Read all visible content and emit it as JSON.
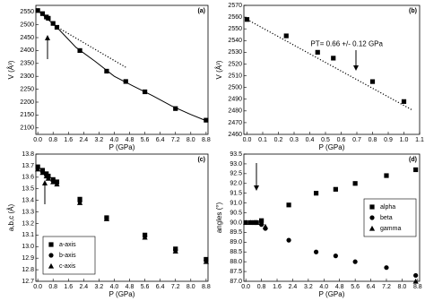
{
  "chart_data": [
    {
      "type": "scatter",
      "panel_label": "(a)",
      "xlabel": "P (GPa)",
      "ylabel": "V (Å³)",
      "xlim": [
        -0.1,
        8.9
      ],
      "ylim": [
        2075,
        2575
      ],
      "xticks": [
        {
          "value": 0,
          "label": "0.0"
        },
        0.8,
        1.6,
        2.4,
        3.2,
        {
          "value": 4,
          "label": "4.0"
        },
        4.8,
        5.6,
        6.4,
        7.2,
        {
          "value": 8,
          "label": "8.0"
        },
        8.8
      ],
      "yticks": [
        2100,
        2150,
        2200,
        2250,
        2300,
        2350,
        2400,
        2450,
        2500,
        2550
      ],
      "series": [
        {
          "marker": "square",
          "color": "#000000",
          "x": [
            0,
            0.25,
            0.45,
            0.55,
            0.8,
            1.0,
            2.2,
            3.6,
            4.6,
            5.6,
            7.2,
            8.8
          ],
          "values": [
            2555,
            2543,
            2530,
            2525,
            2505,
            2490,
            2400,
            2320,
            2280,
            2240,
            2175,
            2130
          ]
        },
        {
          "marker": "line",
          "color": "#000000",
          "x": [
            0,
            1,
            2,
            3,
            4,
            5,
            6,
            7,
            8,
            8.8
          ],
          "values": [
            2555,
            2490,
            2412,
            2358,
            2300,
            2262,
            2225,
            2185,
            2152,
            2128
          ]
        },
        {
          "marker": "dotted",
          "color": "#000000",
          "x": [
            0.8,
            4.6
          ],
          "values": [
            2500,
            2335
          ]
        }
      ]
    },
    {
      "type": "scatter",
      "panel_label": "(b)",
      "xlabel": "P (GPa)",
      "ylabel": "V (Å³)",
      "annotation": "PT= 0.66 +/- 0.12 GPa",
      "xlim": [
        -0.02,
        1.1
      ],
      "ylim": [
        2460,
        2570
      ],
      "xticks": [
        {
          "value": 0,
          "label": "0.0"
        },
        0.1,
        0.2,
        0.3,
        0.4,
        0.5,
        0.6,
        0.7,
        0.8,
        0.9,
        {
          "value": 1,
          "label": "1.0"
        },
        1.1
      ],
      "yticks": [
        2460,
        2470,
        2480,
        2490,
        2500,
        2510,
        2520,
        2530,
        2540,
        2550,
        2560,
        2570
      ],
      "series": [
        {
          "marker": "square",
          "color": "#000000",
          "x": [
            0,
            0.25,
            0.45,
            0.55,
            0.8,
            1.0
          ],
          "values": [
            2558,
            2544,
            2530,
            2525,
            2505,
            2488
          ]
        },
        {
          "marker": "dotted",
          "color": "#000000",
          "x": [
            0,
            1.05
          ],
          "values": [
            2558,
            2481
          ]
        }
      ]
    },
    {
      "type": "scatter",
      "panel_label": "(c)",
      "xlabel": "P (GPa)",
      "ylabel": "a,b,c (Å)",
      "legend": "lower left",
      "xlim": [
        -0.1,
        8.9
      ],
      "ylim": [
        12.7,
        13.8
      ],
      "xticks": [
        {
          "value": 0,
          "label": "0.0"
        },
        0.8,
        1.6,
        2.4,
        3.2,
        {
          "value": 4,
          "label": "4.0"
        },
        4.8,
        5.6,
        6.4,
        7.2,
        {
          "value": 8,
          "label": "8.0"
        },
        8.8
      ],
      "yticks": [
        12.7,
        12.8,
        12.9,
        {
          "value": 13,
          "label": "13.0"
        },
        13.1,
        13.2,
        13.3,
        13.4,
        13.5,
        13.6,
        13.7,
        13.8
      ],
      "series": [
        {
          "name": "a-axis",
          "marker": "square",
          "color": "#000000",
          "x": [
            0,
            0.25,
            0.45,
            0.55,
            0.8,
            1.0,
            2.2,
            3.6,
            5.6,
            7.2,
            8.8
          ],
          "values": [
            13.69,
            13.66,
            13.63,
            13.61,
            13.58,
            13.56,
            13.41,
            13.25,
            13.1,
            12.98,
            12.89
          ]
        },
        {
          "name": "b-axis",
          "marker": "circle",
          "color": "#000000",
          "x": [
            0,
            0.25,
            0.45,
            0.55,
            0.8,
            1.0,
            2.2,
            3.6,
            5.6,
            7.2,
            8.8
          ],
          "values": [
            13.68,
            13.65,
            13.62,
            13.6,
            13.57,
            13.55,
            13.39,
            13.25,
            13.09,
            12.97,
            12.88
          ]
        },
        {
          "name": "c-axis",
          "marker": "triangle",
          "color": "#000000",
          "x": [
            0,
            0.25,
            0.45,
            0.55,
            0.8,
            1.0,
            2.2,
            3.6,
            5.6,
            7.2,
            8.8
          ],
          "values": [
            13.67,
            13.64,
            13.61,
            13.59,
            13.56,
            13.54,
            13.38,
            13.24,
            13.08,
            12.96,
            12.87
          ]
        }
      ]
    },
    {
      "type": "scatter",
      "panel_label": "(d)",
      "xlabel": "P (GPa)",
      "ylabel": "angles (°)",
      "legend": "center right",
      "xlim": [
        -0.1,
        8.9
      ],
      "ylim": [
        87.0,
        93.5
      ],
      "xticks": [
        {
          "value": 0,
          "label": "0.0"
        },
        0.8,
        1.6,
        2.4,
        3.2,
        {
          "value": 4,
          "label": "4.0"
        },
        4.8,
        5.6,
        6.4,
        7.2,
        {
          "value": 8,
          "label": "8.0"
        },
        8.8
      ],
      "yticks": [
        {
          "value": 87,
          "label": "87.0"
        },
        87.5,
        {
          "value": 88,
          "label": "88.0"
        },
        88.5,
        {
          "value": 89,
          "label": "89.0"
        },
        89.5,
        {
          "value": 90,
          "label": "90.0"
        },
        90.5,
        {
          "value": 91,
          "label": "91.0"
        },
        91.5,
        {
          "value": 92,
          "label": "92.0"
        },
        92.5,
        {
          "value": 93,
          "label": "93.0"
        },
        93.5
      ],
      "series": [
        {
          "name": "alpha",
          "marker": "square",
          "color": "#000000",
          "x": [
            0,
            0.25,
            0.45,
            0.55,
            0.8,
            2.2,
            3.6,
            4.6,
            5.6,
            7.2,
            8.7
          ],
          "values": [
            90.0,
            90.0,
            90.0,
            90.0,
            90.1,
            90.9,
            91.5,
            91.7,
            92.0,
            92.4,
            92.7
          ]
        },
        {
          "name": "beta",
          "marker": "circle",
          "color": "#000000",
          "x": [
            0,
            0.25,
            0.45,
            0.55,
            0.8,
            1.0,
            2.2,
            3.6,
            4.6,
            5.6,
            7.2,
            8.7
          ],
          "values": [
            90.0,
            90.0,
            90.0,
            90.0,
            89.9,
            89.7,
            89.1,
            88.5,
            88.3,
            88.0,
            87.7,
            87.3
          ]
        },
        {
          "name": "gamma",
          "marker": "triangle",
          "color": "#000000",
          "x": [
            0,
            0.25,
            0.45,
            0.55,
            0.8,
            1.0,
            8.7
          ],
          "values": [
            90.0,
            90.0,
            90.0,
            90.0,
            90.0,
            89.8,
            87.0
          ]
        }
      ]
    }
  ]
}
